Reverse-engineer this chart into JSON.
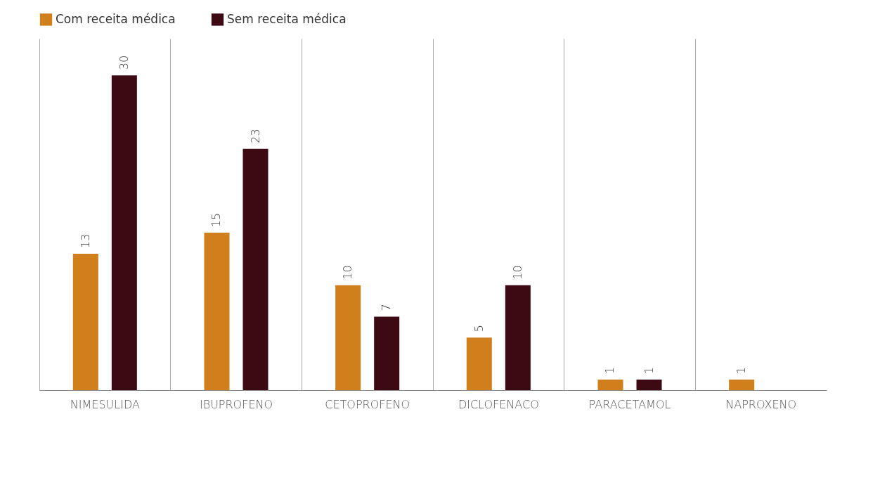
{
  "chart_data": {
    "type": "bar",
    "categories": [
      "NIMESULIDA",
      "IBUPROFENO",
      "CETOPROFENO",
      "DICLOFENACO",
      "PARACETAMOL",
      "NAPROXENO"
    ],
    "series": [
      {
        "name": "Com receita médica",
        "color": "#d07f1c",
        "values": [
          13,
          15,
          10,
          5,
          1,
          1
        ]
      },
      {
        "name": "Sem receita médica",
        "color": "#3d0a14",
        "values": [
          30,
          23,
          7,
          10,
          1,
          null
        ]
      }
    ],
    "ylim": [
      0,
      33.5
    ],
    "data_labels": true,
    "grid": "x",
    "legend": "top"
  }
}
